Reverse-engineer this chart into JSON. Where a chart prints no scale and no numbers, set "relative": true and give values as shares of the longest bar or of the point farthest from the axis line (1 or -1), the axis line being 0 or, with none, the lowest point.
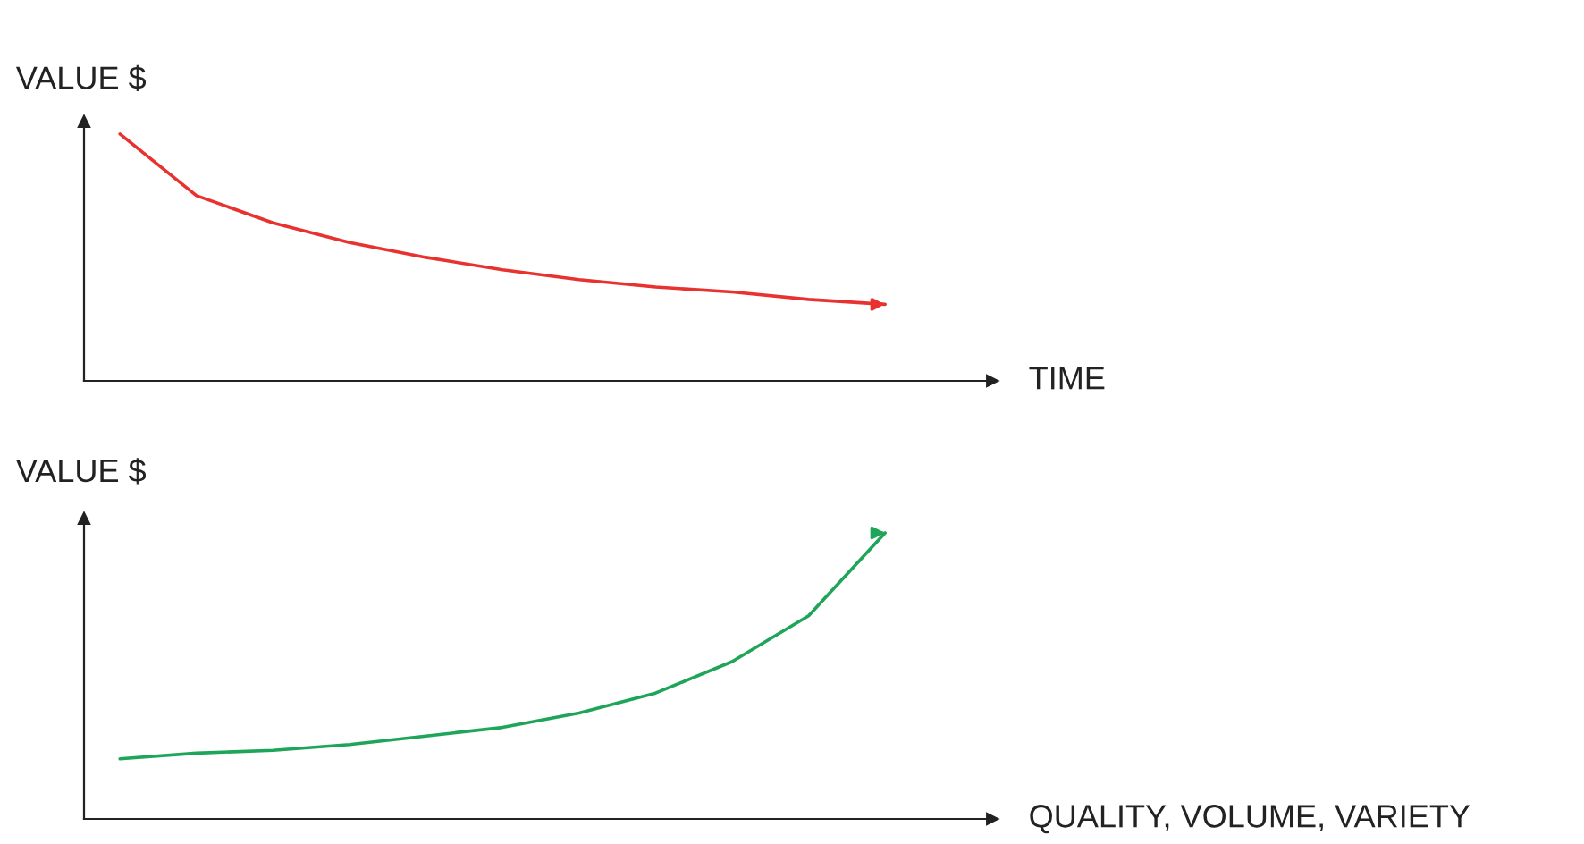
{
  "chart_data": [
    {
      "type": "line",
      "relative": true,
      "ylabel": "VALUE $",
      "xlabel": "TIME",
      "tick_labels": false,
      "categories": [
        null,
        null,
        null,
        null,
        null,
        null,
        null,
        null,
        null,
        null,
        null
      ],
      "series": [
        {
          "color": "#e8322f",
          "values": [
            1,
            0.75,
            0.64,
            0.56,
            0.5,
            0.45,
            0.41,
            0.38,
            0.36,
            0.33,
            0.31
          ]
        }
      ]
    },
    {
      "type": "line",
      "relative": true,
      "ylabel": "VALUE $",
      "xlabel": "QUALITY, VOLUME, VARIETY",
      "tick_labels": false,
      "categories": [
        null,
        null,
        null,
        null,
        null,
        null,
        null,
        null,
        null,
        null,
        null
      ],
      "series": [
        {
          "color": "#1fa55a",
          "values": [
            0.21,
            0.23,
            0.24,
            0.26,
            0.29,
            0.32,
            0.37,
            0.44,
            0.55,
            0.71,
            1
          ]
        }
      ]
    }
  ]
}
